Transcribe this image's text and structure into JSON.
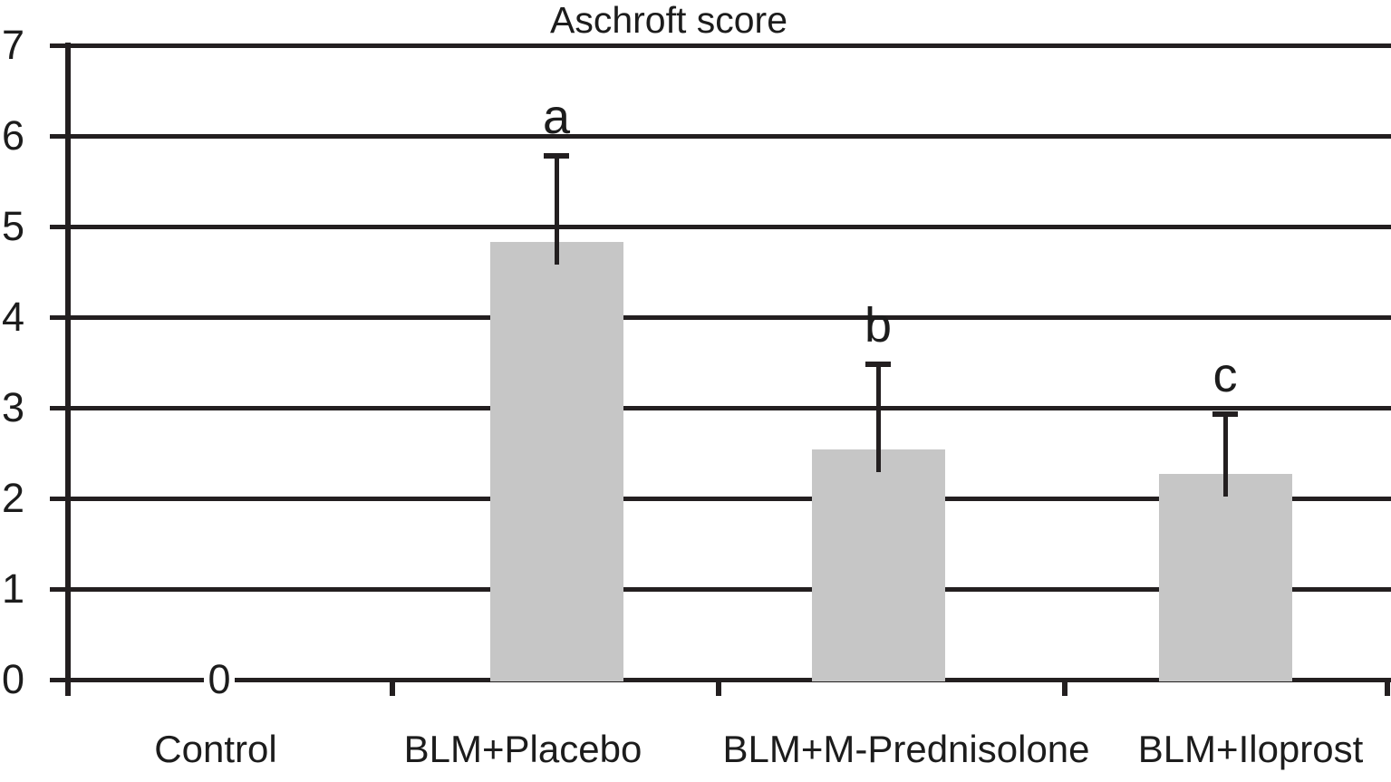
{
  "chart_data": {
    "type": "bar",
    "title": "Aschroft score",
    "categories": [
      "Control",
      "BLM+Placebo",
      "BLM+M-Prednisolone",
      "BLM+Iloprost"
    ],
    "values": [
      0,
      4.83,
      2.54,
      2.27
    ],
    "error_plus": [
      null,
      0.95,
      0.94,
      0.66
    ],
    "annotations": [
      "",
      "a",
      "b",
      "c"
    ],
    "value_labels": [
      "0",
      "",
      "",
      ""
    ],
    "xlabel": "",
    "ylabel": "",
    "ylim": [
      0,
      7
    ],
    "yticks": [
      0,
      1,
      2,
      3,
      4,
      5,
      6,
      7
    ],
    "grid": true,
    "legend": false,
    "bar_color": "#c6c6c6",
    "line_color": "#231f20",
    "background": "#ffffff"
  }
}
